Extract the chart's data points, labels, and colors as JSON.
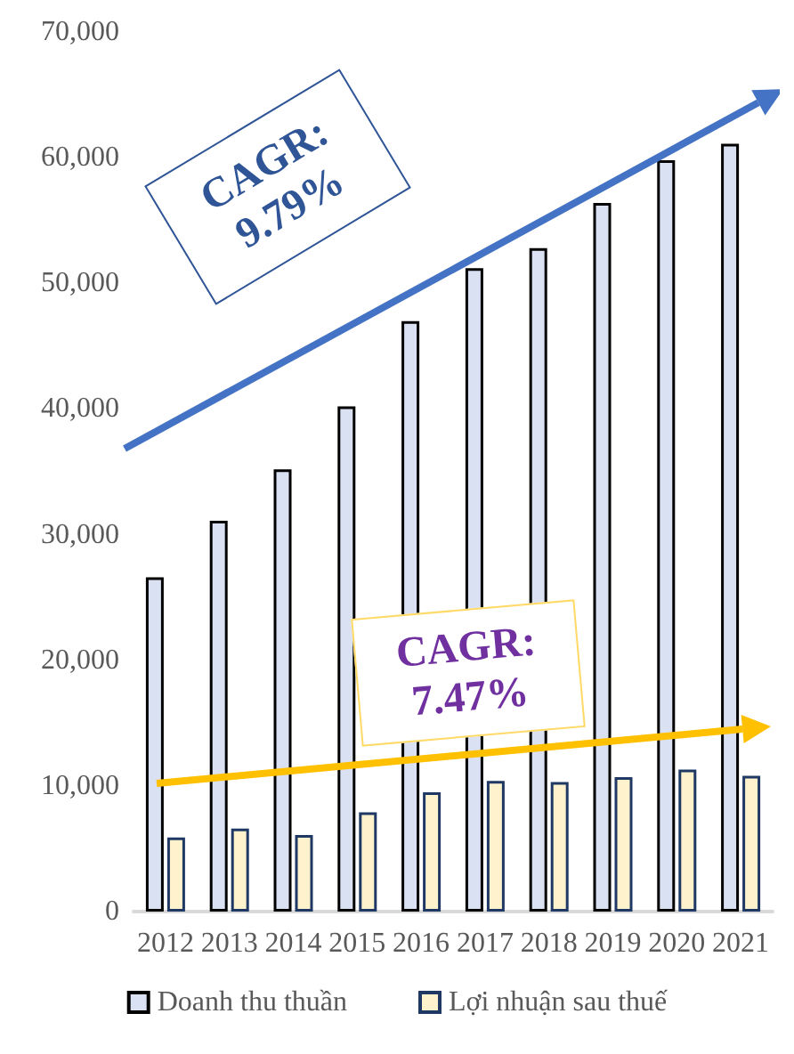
{
  "chart_data": {
    "type": "bar",
    "categories": [
      "2012",
      "2013",
      "2014",
      "2015",
      "2016",
      "2017",
      "2018",
      "2019",
      "2020",
      "2021"
    ],
    "series": [
      {
        "name": "Doanh thu thuần",
        "color": "#d9e1f2",
        "values": [
          26600,
          31100,
          35200,
          40200,
          47000,
          51200,
          52800,
          56400,
          59800,
          61100
        ]
      },
      {
        "name": "Lợi nhuận sau thuế",
        "color": "#fff2cc",
        "values": [
          5900,
          6600,
          6100,
          7900,
          9500,
          10400,
          10300,
          10700,
          11300,
          10800
        ]
      }
    ],
    "ylim": [
      0,
      70000
    ],
    "yticks": [
      0,
      {
        "value": 10000,
        "label": "10,000"
      },
      {
        "value": 20000,
        "label": "20,000"
      },
      {
        "value": 30000,
        "label": "30,000"
      },
      {
        "value": 40000,
        "label": "40,000"
      },
      {
        "value": 50000,
        "label": "50,000"
      },
      {
        "value": 60000,
        "label": "60,000"
      },
      {
        "value": 70000,
        "label": "70,000"
      }
    ],
    "grid": false,
    "legend": "bottom",
    "annotations": [
      "CAGR: 9.79%",
      "CAGR: 7.47%"
    ]
  }
}
